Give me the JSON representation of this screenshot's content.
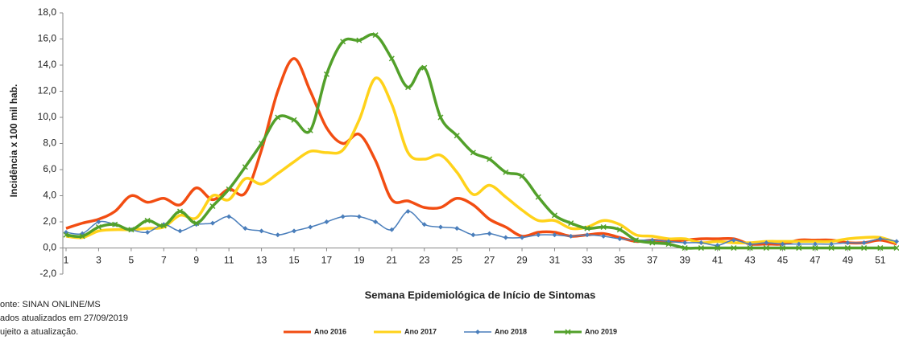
{
  "chart_data": {
    "type": "line",
    "x_label": "Semana Epidemiológica de Início de Sintomas",
    "y_label": "Incidência x 100 mil hab.",
    "notes": [
      "onte: SINAN ONLINE/MS",
      "ados atualizados em  27/09/2019",
      "ujeito a atualização."
    ],
    "x": [
      1,
      2,
      3,
      4,
      5,
      6,
      7,
      8,
      9,
      10,
      11,
      12,
      13,
      14,
      15,
      16,
      17,
      18,
      19,
      20,
      21,
      22,
      23,
      24,
      25,
      26,
      27,
      28,
      29,
      30,
      31,
      32,
      33,
      34,
      35,
      36,
      37,
      38,
      39,
      40,
      41,
      42,
      43,
      44,
      45,
      46,
      47,
      48,
      49,
      50,
      51,
      52
    ],
    "xlim": [
      1,
      52
    ],
    "xticks": [
      1,
      3,
      5,
      7,
      9,
      11,
      13,
      15,
      17,
      19,
      21,
      23,
      25,
      27,
      29,
      31,
      33,
      35,
      37,
      39,
      41,
      43,
      45,
      47,
      49,
      51
    ],
    "ylim": [
      -2,
      18
    ],
    "yticks": [
      {
        "value": -2,
        "label": "-2,0"
      },
      {
        "value": 0,
        "label": "0,0"
      },
      {
        "value": 2,
        "label": "2,0"
      },
      {
        "value": 4,
        "label": "4,0"
      },
      {
        "value": 6,
        "label": "6,0"
      },
      {
        "value": 8,
        "label": "8,0"
      },
      {
        "value": 10,
        "label": "10,0"
      },
      {
        "value": 12,
        "label": "12,0"
      },
      {
        "value": 14,
        "label": "14,0"
      },
      {
        "value": 16,
        "label": "16,0"
      },
      {
        "value": 18,
        "label": "18,0"
      }
    ],
    "series": [
      {
        "name": "Ano 2016",
        "color": "#f24d12",
        "marker": "dash",
        "values": [
          1.5,
          1.9,
          2.2,
          2.8,
          4.0,
          3.5,
          3.8,
          3.3,
          4.6,
          3.7,
          4.5,
          4.2,
          7.5,
          12.0,
          14.5,
          12.0,
          9.2,
          8.0,
          8.7,
          6.7,
          3.7,
          3.6,
          3.1,
          3.1,
          3.8,
          3.3,
          2.2,
          1.6,
          0.9,
          1.2,
          1.2,
          0.9,
          1.0,
          1.1,
          0.8,
          0.5,
          0.6,
          0.5,
          0.6,
          0.7,
          0.7,
          0.7,
          0.3,
          0.3,
          0.3,
          0.6,
          0.6,
          0.6,
          0.4,
          0.4,
          0.6,
          0.3
        ]
      },
      {
        "name": "Ano 2017",
        "color": "#ffd21a",
        "marker": "none",
        "values": [
          0.9,
          0.8,
          1.3,
          1.4,
          1.4,
          1.5,
          1.6,
          2.5,
          2.3,
          4.0,
          3.7,
          5.3,
          4.9,
          5.7,
          6.6,
          7.4,
          7.3,
          7.5,
          9.8,
          13.0,
          11.0,
          7.3,
          6.8,
          7.1,
          5.8,
          4.1,
          4.8,
          3.9,
          2.9,
          2.1,
          2.1,
          1.5,
          1.6,
          2.1,
          1.8,
          1.0,
          0.9,
          0.7,
          0.7,
          0.4,
          0.5,
          0.4,
          0.4,
          0.5,
          0.5,
          0.5,
          0.5,
          0.5,
          0.7,
          0.8,
          0.8,
          0.4
        ]
      },
      {
        "name": "Ano 2018",
        "color": "#4a7ebb",
        "marker": "diamond",
        "values": [
          1.2,
          1.1,
          2.0,
          1.8,
          1.4,
          1.2,
          1.8,
          1.3,
          1.8,
          1.9,
          2.4,
          1.5,
          1.3,
          1.0,
          1.3,
          1.6,
          2.0,
          2.4,
          2.4,
          2.0,
          1.4,
          2.8,
          1.8,
          1.6,
          1.5,
          1.0,
          1.1,
          0.8,
          0.8,
          1.0,
          1.0,
          0.9,
          1.0,
          0.9,
          0.7,
          0.6,
          0.6,
          0.5,
          0.4,
          0.4,
          0.2,
          0.6,
          0.3,
          0.4,
          0.3,
          0.3,
          0.3,
          0.3,
          0.4,
          0.4,
          0.7,
          0.5
        ]
      },
      {
        "name": "Ano 2019",
        "color": "#52a02a",
        "marker": "x",
        "values": [
          1.0,
          0.9,
          1.6,
          1.8,
          1.4,
          2.1,
          1.7,
          2.8,
          1.9,
          3.2,
          4.5,
          6.2,
          8.0,
          10.0,
          9.8,
          9.0,
          13.3,
          15.8,
          15.9,
          16.3,
          14.5,
          12.3,
          13.8,
          10.0,
          8.6,
          7.3,
          6.8,
          5.8,
          5.5,
          3.9,
          2.5,
          1.9,
          1.5,
          1.6,
          1.4,
          0.6,
          0.4,
          0.3,
          0.0,
          0.0,
          0.0,
          0.0,
          0.0,
          0.0,
          0.0,
          0.0,
          0.0,
          0.0,
          0.0,
          0.0,
          0.0,
          0.0
        ]
      }
    ]
  }
}
